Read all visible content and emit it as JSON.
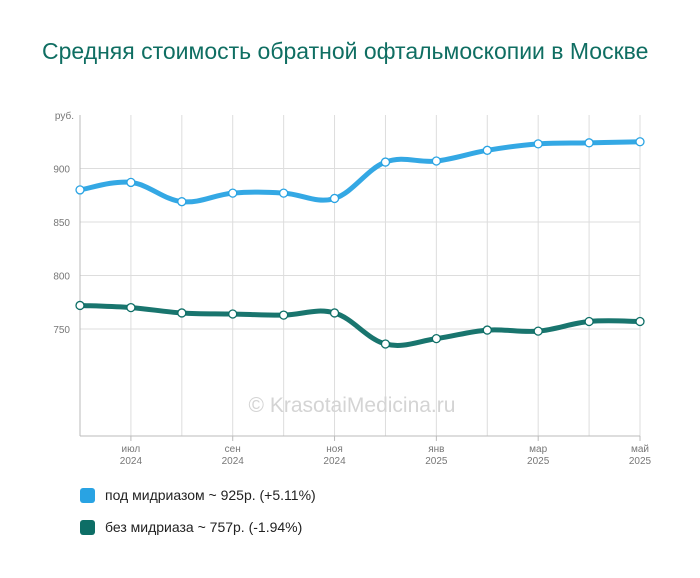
{
  "title": "Средняя стоимость обратной офтальмоскопии в Москве",
  "watermark": "© KrasotaiMedicina.ru",
  "chart_data": {
    "type": "line",
    "ylabel": "руб.",
    "ylim": [
      650,
      950
    ],
    "yticks": [
      750,
      800,
      850,
      900
    ],
    "x": [
      "2024-06",
      "2024-07",
      "2024-08",
      "2024-09",
      "2024-10",
      "2024-11",
      "2024-12",
      "2025-01",
      "2025-02",
      "2025-03",
      "2025-04",
      "2025-05"
    ],
    "xtick_labels": [
      {
        "index": 1,
        "month": "июл",
        "year": "2024"
      },
      {
        "index": 3,
        "month": "сен",
        "year": "2024"
      },
      {
        "index": 5,
        "month": "ноя",
        "year": "2024"
      },
      {
        "index": 7,
        "month": "янв",
        "year": "2025"
      },
      {
        "index": 9,
        "month": "мар",
        "year": "2025"
      },
      {
        "index": 11,
        "month": "май",
        "year": "2025"
      }
    ],
    "grid": true,
    "legend_position": "bottom",
    "series": [
      {
        "name": "под мидриазом ~ 925р. (+5.11%)",
        "color": "#29a3e3",
        "values": [
          880,
          887,
          869,
          877,
          877,
          872,
          906,
          907,
          917,
          923,
          924,
          925
        ]
      },
      {
        "name": "без мидриаза ~ 757р. (-1.94%)",
        "color": "#0d6e66",
        "values": [
          772,
          770,
          765,
          764,
          763,
          765,
          736,
          741,
          749,
          748,
          757,
          757
        ]
      }
    ]
  }
}
